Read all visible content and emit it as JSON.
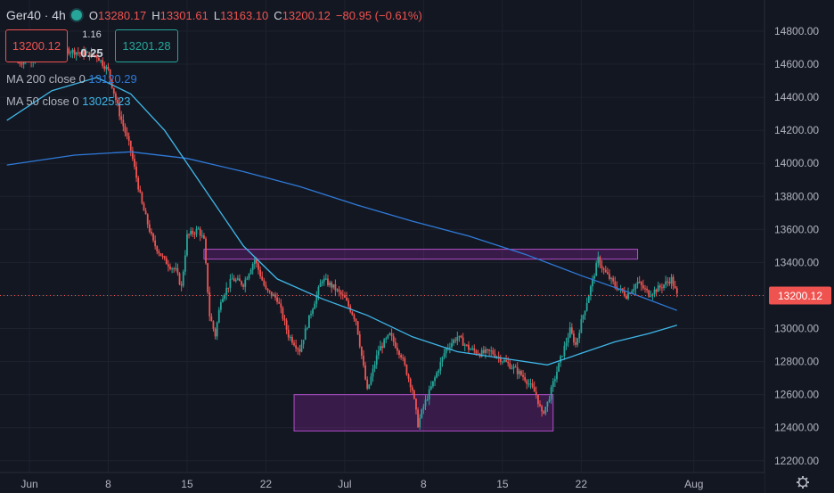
{
  "header": {
    "symbol": "Ger40",
    "interval": "4h",
    "ohlc": [
      {
        "key": "O",
        "value": "13280.17"
      },
      {
        "key": "H",
        "value": "13301.61"
      },
      {
        "key": "L",
        "value": "13163.10"
      },
      {
        "key": "C",
        "value": "13200.12"
      }
    ],
    "change": "−80.95 (−0.61%)",
    "colors": {
      "down": "#ef5350",
      "up": "#26a69a"
    }
  },
  "trade": {
    "sell_price": "13200.12",
    "buy_price": "13201.28",
    "lot_size": "1.16",
    "spread": "0.25"
  },
  "indicators": {
    "ma200": {
      "label": "MA 200 close 0",
      "value": "13120.29",
      "color": "#2f7ad8"
    },
    "ma50": {
      "label": "MA 50 close 0",
      "value": "13025.23",
      "color": "#3fb7e8"
    }
  },
  "last_price_label": "13200.12",
  "settings_icon": "gear-icon",
  "chart_data": {
    "type": "candlestick",
    "ylim": [
      12150,
      14900
    ],
    "y_ticks": [
      "14800.00",
      "14600.00",
      "14400.00",
      "14200.00",
      "14000.00",
      "13800.00",
      "13600.00",
      "13400.00",
      "13200.00",
      "13000.00",
      "12800.00",
      "12600.00",
      "12400.00",
      "12200.00"
    ],
    "x_ticks": [
      {
        "label": "Jun",
        "day": 1
      },
      {
        "label": "8",
        "day": 8
      },
      {
        "label": "15",
        "day": 15
      },
      {
        "label": "22",
        "day": 22
      },
      {
        "label": "Jul",
        "day": 29
      },
      {
        "label": "8",
        "day": 36
      },
      {
        "label": "15",
        "day": 43
      },
      {
        "label": "22",
        "day": 50
      },
      {
        "label": "Aug",
        "day": 60
      }
    ],
    "colors": {
      "up": "#26a69a",
      "down": "#ef5350",
      "ma200": "#2f7ad8",
      "ma50": "#3fb7e8",
      "zone": "#9c27b0"
    },
    "price_path": [
      [
        0,
        14610
      ],
      [
        4,
        14690
      ],
      [
        7,
        14650
      ],
      [
        8,
        14560
      ],
      [
        9,
        14300
      ],
      [
        10,
        14080
      ],
      [
        11,
        13750
      ],
      [
        12,
        13520
      ],
      [
        13,
        13410
      ],
      [
        14,
        13350
      ],
      [
        14.5,
        13250
      ],
      [
        15,
        13560
      ],
      [
        16,
        13600
      ],
      [
        16.5,
        13530
      ],
      [
        17,
        13080
      ],
      [
        17.5,
        12960
      ],
      [
        18,
        13180
      ],
      [
        19,
        13300
      ],
      [
        20,
        13270
      ],
      [
        21,
        13420
      ],
      [
        22,
        13230
      ],
      [
        23,
        13180
      ],
      [
        24,
        12960
      ],
      [
        25,
        12870
      ],
      [
        26,
        13100
      ],
      [
        27,
        13300
      ],
      [
        28,
        13250
      ],
      [
        29,
        13180
      ],
      [
        30,
        13050
      ],
      [
        31,
        12620
      ],
      [
        32,
        12870
      ],
      [
        33,
        12960
      ],
      [
        34,
        12840
      ],
      [
        35,
        12630
      ],
      [
        35.5,
        12420
      ],
      [
        36,
        12530
      ],
      [
        37,
        12700
      ],
      [
        38,
        12880
      ],
      [
        39,
        12950
      ],
      [
        40,
        12880
      ],
      [
        41,
        12850
      ],
      [
        42,
        12860
      ],
      [
        43,
        12810
      ],
      [
        44,
        12760
      ],
      [
        45,
        12700
      ],
      [
        46,
        12600
      ],
      [
        46.5,
        12480
      ],
      [
        47,
        12550
      ],
      [
        48,
        12780
      ],
      [
        49,
        12990
      ],
      [
        49.5,
        12900
      ],
      [
        50,
        13040
      ],
      [
        51,
        13290
      ],
      [
        51.5,
        13420
      ],
      [
        52,
        13350
      ],
      [
        53,
        13260
      ],
      [
        54,
        13200
      ],
      [
        55,
        13280
      ],
      [
        56,
        13210
      ],
      [
        57,
        13250
      ],
      [
        58,
        13300
      ],
      [
        58.5,
        13200
      ]
    ],
    "ma200_path": [
      [
        -1,
        13990
      ],
      [
        5,
        14050
      ],
      [
        10,
        14070
      ],
      [
        15,
        14030
      ],
      [
        20,
        13950
      ],
      [
        25,
        13860
      ],
      [
        30,
        13750
      ],
      [
        35,
        13650
      ],
      [
        40,
        13560
      ],
      [
        45,
        13450
      ],
      [
        50,
        13320
      ],
      [
        55,
        13200
      ],
      [
        58.5,
        13110
      ]
    ],
    "ma50_path": [
      [
        -1,
        14260
      ],
      [
        3,
        14440
      ],
      [
        7,
        14520
      ],
      [
        10,
        14420
      ],
      [
        13,
        14200
      ],
      [
        17,
        13800
      ],
      [
        20,
        13500
      ],
      [
        23,
        13300
      ],
      [
        27,
        13180
      ],
      [
        31,
        13080
      ],
      [
        35,
        12950
      ],
      [
        39,
        12860
      ],
      [
        43,
        12820
      ],
      [
        47,
        12780
      ],
      [
        50,
        12850
      ],
      [
        53,
        12920
      ],
      [
        56,
        12970
      ],
      [
        58.5,
        13020
      ]
    ],
    "zones": [
      {
        "from_day": 16.5,
        "to_day": 55,
        "low": 13420,
        "high": 13480
      },
      {
        "from_day": 24.5,
        "to_day": 47.5,
        "low": 12380,
        "high": 12600
      }
    ],
    "last_price": 13200.12
  }
}
